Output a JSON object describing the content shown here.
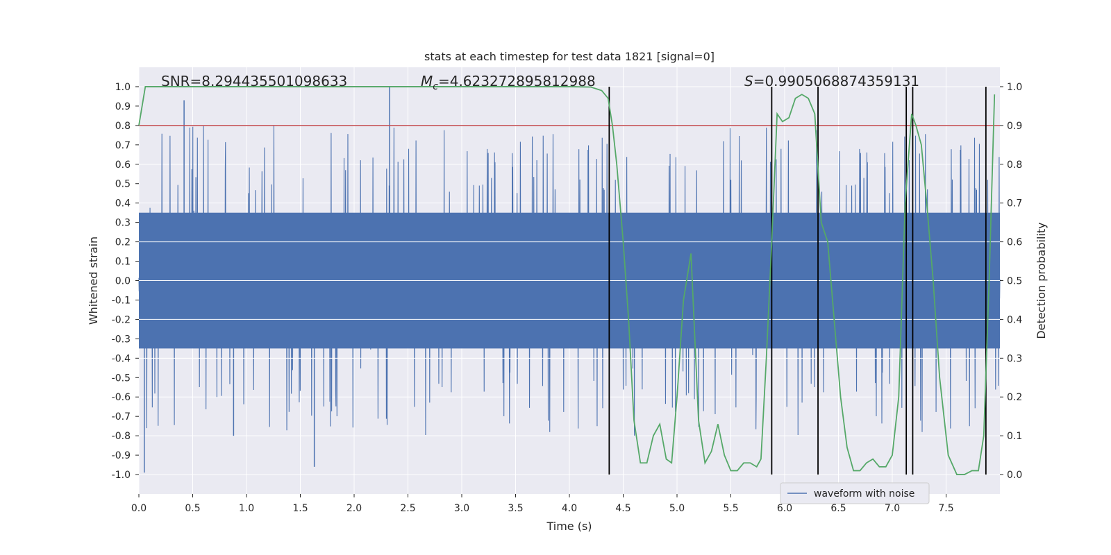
{
  "chart_data": {
    "type": "line",
    "title": "stats at each timestep for test data 1821 [signal=0]",
    "xlabel": "Time (s)",
    "ylabel": "Whitened strain",
    "y2label": "Detection probability",
    "xlim": [
      0.0,
      8.0
    ],
    "ylim": [
      -1.1,
      1.1
    ],
    "y2lim": [
      -0.05,
      1.05
    ],
    "x_ticks": [
      "0.0",
      "0.5",
      "1.0",
      "1.5",
      "2.0",
      "2.5",
      "3.0",
      "3.5",
      "4.0",
      "4.5",
      "5.0",
      "5.5",
      "6.0",
      "6.5",
      "7.0",
      "7.5"
    ],
    "y_ticks": [
      "1.0",
      "0.9",
      "0.8",
      "0.7",
      "0.6",
      "0.5",
      "0.4",
      "0.3",
      "0.2",
      "0.1",
      "0.0",
      "-0.1",
      "-0.2",
      "-0.3",
      "-0.4",
      "-0.5",
      "-0.6",
      "-0.7",
      "-0.8",
      "-0.9",
      "-1.0"
    ],
    "y2_ticks": [
      "1.0",
      "0.9",
      "0.8",
      "0.7",
      "0.6",
      "0.5",
      "0.4",
      "0.3",
      "0.2",
      "0.1",
      "0.0"
    ],
    "annotations": {
      "snr": "SNR=8.294435501098633",
      "mc_symbol": "M",
      "mc_sub": "c",
      "mc_value": "=4.623272895812988",
      "s_symbol": "S",
      "s_value": "=0.9905068874359131"
    },
    "threshold": {
      "value": 0.9,
      "axis": "right",
      "color": "#c44e52"
    },
    "event_lines_x": [
      4.37,
      5.88,
      6.31,
      7.13,
      7.19,
      7.87
    ],
    "waveform": {
      "name": "waveform with noise",
      "color": "#4c72b0",
      "envelope_core": 0.35,
      "notable_spikes": [
        {
          "x": 0.05,
          "y": -0.99
        },
        {
          "x": 0.42,
          "y": 0.93
        },
        {
          "x": 2.33,
          "y": 1.0
        },
        {
          "x": 1.63,
          "y": -0.96
        },
        {
          "x": 0.88,
          "y": -0.8
        }
      ]
    },
    "probability": {
      "name": "Detection probability",
      "color": "#55a868",
      "x": [
        0.0,
        0.06,
        0.1,
        1.0,
        2.0,
        3.0,
        4.0,
        4.2,
        4.3,
        4.36,
        4.4,
        4.44,
        4.5,
        4.55,
        4.6,
        4.66,
        4.72,
        4.78,
        4.84,
        4.9,
        4.95,
        5.0,
        5.06,
        5.13,
        5.2,
        5.26,
        5.32,
        5.38,
        5.44,
        5.5,
        5.56,
        5.62,
        5.68,
        5.74,
        5.78,
        5.83,
        5.88,
        5.93,
        5.98,
        6.04,
        6.1,
        6.16,
        6.22,
        6.28,
        6.34,
        6.4,
        6.46,
        6.52,
        6.58,
        6.64,
        6.7,
        6.76,
        6.82,
        6.88,
        6.94,
        7.0,
        7.06,
        7.12,
        7.18,
        7.22,
        7.27,
        7.32,
        7.38,
        7.44,
        7.52,
        7.6,
        7.67,
        7.74,
        7.8,
        7.85,
        7.9,
        7.95
      ],
      "y": [
        0.9,
        1.0,
        1.0,
        1.0,
        1.0,
        1.0,
        1.0,
        0.999,
        0.99,
        0.97,
        0.9,
        0.8,
        0.6,
        0.4,
        0.14,
        0.03,
        0.03,
        0.1,
        0.13,
        0.04,
        0.03,
        0.2,
        0.45,
        0.57,
        0.14,
        0.03,
        0.06,
        0.13,
        0.05,
        0.01,
        0.01,
        0.03,
        0.03,
        0.02,
        0.04,
        0.3,
        0.6,
        0.93,
        0.91,
        0.92,
        0.97,
        0.98,
        0.97,
        0.93,
        0.65,
        0.6,
        0.4,
        0.2,
        0.07,
        0.01,
        0.01,
        0.03,
        0.04,
        0.02,
        0.02,
        0.05,
        0.2,
        0.7,
        0.93,
        0.9,
        0.85,
        0.7,
        0.5,
        0.25,
        0.05,
        0.0,
        0.0,
        0.01,
        0.01,
        0.1,
        0.5,
        0.98
      ]
    },
    "legend": {
      "label": "waveform with noise",
      "placement": "lower-right"
    },
    "grid": true
  }
}
